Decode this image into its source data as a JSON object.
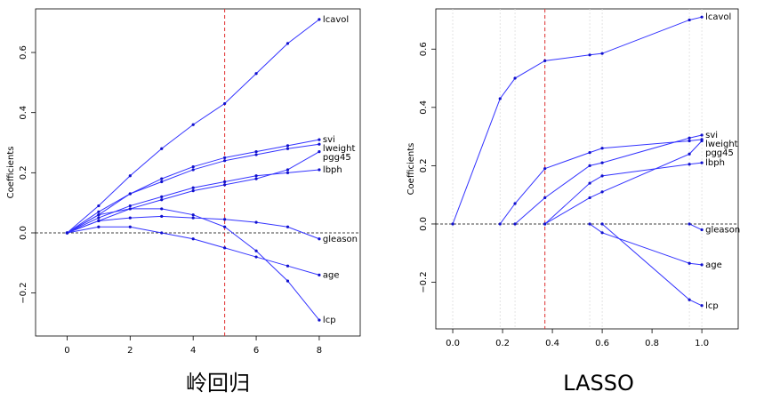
{
  "chart_data": [
    {
      "type": "line",
      "caption": "岭回归",
      "y_label": "Coefficients",
      "x": [
        0,
        1,
        2,
        3,
        4,
        5,
        6,
        7,
        8
      ],
      "series": [
        {
          "name": "lcavol",
          "color": "#3333ff",
          "values": [
            0,
            0.09,
            0.19,
            0.28,
            0.36,
            0.43,
            0.53,
            0.63,
            0.71
          ]
        },
        {
          "name": "svi",
          "color": "#3333ff",
          "values": [
            0,
            0.06,
            0.13,
            0.18,
            0.22,
            0.25,
            0.27,
            0.29,
            0.31
          ]
        },
        {
          "name": "lweight",
          "color": "#3333ff",
          "values": [
            0,
            0.07,
            0.13,
            0.17,
            0.21,
            0.24,
            0.26,
            0.28,
            0.295
          ]
        },
        {
          "name": "pgg45",
          "color": "#3333ff",
          "values": [
            0,
            0.04,
            0.08,
            0.11,
            0.14,
            0.16,
            0.18,
            0.21,
            0.27
          ]
        },
        {
          "name": "lbph",
          "color": "#3333ff",
          "values": [
            0,
            0.05,
            0.09,
            0.12,
            0.15,
            0.17,
            0.19,
            0.2,
            0.21
          ]
        },
        {
          "name": "gleason",
          "color": "#3333ff",
          "values": [
            0,
            0.04,
            0.05,
            0.055,
            0.05,
            0.045,
            0.035,
            0.02,
            -0.02
          ]
        },
        {
          "name": "age",
          "color": "#3333ff",
          "values": [
            0,
            0.02,
            0.02,
            0,
            -0.02,
            -0.05,
            -0.08,
            -0.11,
            -0.14
          ]
        },
        {
          "name": "lcp",
          "color": "#3333ff",
          "values": [
            0,
            0.06,
            0.08,
            0.08,
            0.06,
            0.02,
            -0.06,
            -0.16,
            -0.29
          ]
        }
      ],
      "xlim": [
        -1,
        9.3
      ],
      "ylim": [
        -0.343,
        0.745
      ],
      "xticks": [
        0,
        2,
        4,
        6,
        8
      ],
      "yticks": [
        {
          "value": -0.2,
          "label": "−0.2"
        },
        {
          "value": 0,
          "label": "0.0"
        },
        {
          "value": 0.2,
          "label": "0.2"
        },
        {
          "value": 0.4,
          "label": "0.4"
        },
        {
          "value": 0.6,
          "label": "0.6"
        }
      ],
      "vline": 5,
      "vline_color": "#e03030",
      "zero_line": true,
      "vgrid": false
    },
    {
      "type": "line",
      "caption": "LASSO",
      "y_label": "Coefficients",
      "x": [
        0,
        0.19,
        0.25,
        0.37,
        0.55,
        0.6,
        0.95,
        1.0
      ],
      "series": [
        {
          "name": "lcavol",
          "color": "#3333ff",
          "values": [
            0,
            0.43,
            0.5,
            0.56,
            0.58,
            0.585,
            0.7,
            0.71
          ]
        },
        {
          "name": "svi",
          "color": "#3333ff",
          "values": [
            null,
            null,
            0,
            0.09,
            0.2,
            0.21,
            0.295,
            0.305
          ]
        },
        {
          "name": "lweight",
          "color": "#3333ff",
          "values": [
            null,
            0,
            0.07,
            0.19,
            0.245,
            0.26,
            0.285,
            0.29
          ]
        },
        {
          "name": "pgg45",
          "color": "#3333ff",
          "values": [
            null,
            null,
            null,
            0,
            0.09,
            0.11,
            0.24,
            0.285
          ]
        },
        {
          "name": "lbph",
          "color": "#3333ff",
          "values": [
            null,
            null,
            null,
            0,
            0.14,
            0.165,
            0.205,
            0.21
          ]
        },
        {
          "name": "gleason",
          "color": "#3333ff",
          "values": [
            null,
            null,
            null,
            null,
            null,
            null,
            0,
            -0.02
          ]
        },
        {
          "name": "age",
          "color": "#3333ff",
          "values": [
            null,
            null,
            null,
            null,
            0,
            -0.03,
            -0.135,
            -0.14
          ]
        },
        {
          "name": "lcp",
          "color": "#3333ff",
          "values": [
            null,
            null,
            null,
            null,
            null,
            0,
            -0.26,
            -0.28
          ]
        }
      ],
      "xlim": [
        -0.068,
        1.146
      ],
      "ylim": [
        -0.36,
        0.738
      ],
      "xticks": [
        {
          "value": 0,
          "label": "0.0"
        },
        {
          "value": 0.2,
          "label": "0.2"
        },
        {
          "value": 0.4,
          "label": "0.4"
        },
        {
          "value": 0.6,
          "label": "0.6"
        },
        {
          "value": 0.8,
          "label": "0.8"
        },
        {
          "value": 1,
          "label": "1.0"
        }
      ],
      "yticks": [
        {
          "value": -0.2,
          "label": "−0.2"
        },
        {
          "value": 0,
          "label": "0.0"
        },
        {
          "value": 0.2,
          "label": "0.2"
        },
        {
          "value": 0.4,
          "label": "0.4"
        },
        {
          "value": 0.6,
          "label": "0.6"
        }
      ],
      "vline": 0.37,
      "vline_color": "#e03030",
      "zero_line": true,
      "vgrid": true
    }
  ]
}
